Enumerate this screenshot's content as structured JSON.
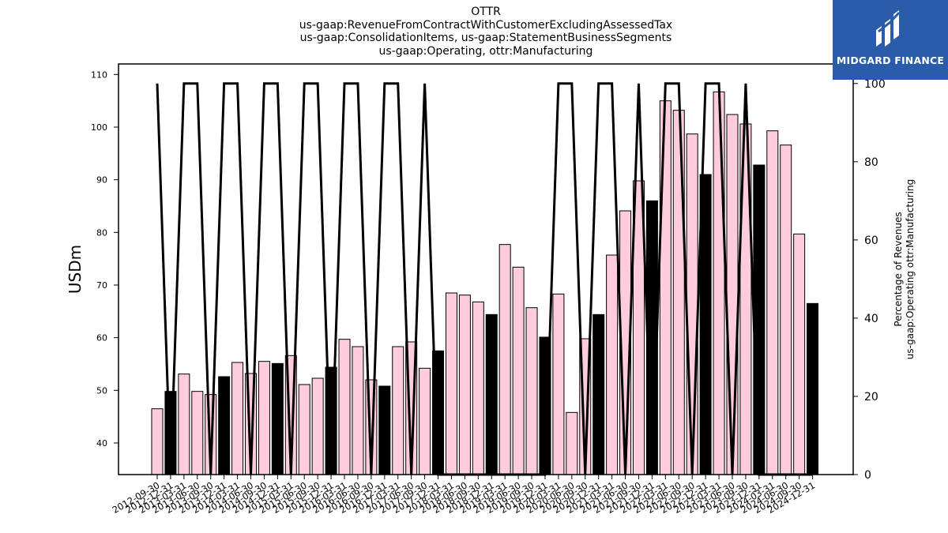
{
  "header": {
    "title_lines": [
      "OTTR",
      "us-gaap:RevenueFromContractWithCustomerExcludingAssessedTax",
      "us-gaap:ConsolidationItems, us-gaap:StatementBusinessSegments",
      "us-gaap:Operating, ottr:Manufacturing"
    ]
  },
  "logo": {
    "text": "MIDGARD FINANCE",
    "icon": "midgard-logo-icon",
    "color": "#2a5caa"
  },
  "colors": {
    "bar_default": "#ffccdd",
    "bar_q4": "#000000",
    "line": "#000000"
  },
  "chart_data": {
    "type": "bar",
    "ylabel": "USDm",
    "y2label": [
      "Percentage of Revenues",
      "us-gaap:Operating ottr:Manufacturing"
    ],
    "ylim": [
      34,
      112
    ],
    "y2lim": [
      0,
      105
    ],
    "yticks": [
      40,
      50,
      60,
      70,
      80,
      90,
      100,
      110
    ],
    "y2ticks": [
      0,
      20,
      40,
      60,
      80,
      100
    ],
    "x": [
      "2012-09-30",
      "2012-12-31",
      "2013-03-31",
      "2013-06-30",
      "2013-09-30",
      "2013-12-31",
      "2014-03-31",
      "2014-06-30",
      "2014-09-30",
      "2014-12-31",
      "2015-03-31",
      "2015-06-30",
      "2015-09-30",
      "2015-12-31",
      "2016-03-31",
      "2016-06-30",
      "2016-09-30",
      "2016-12-31",
      "2017-03-31",
      "2017-06-30",
      "2017-09-30",
      "2017-12-31",
      "2018-03-31",
      "2018-06-30",
      "2018-09-30",
      "2018-12-31",
      "2019-03-31",
      "2019-06-30",
      "2019-09-30",
      "2019-12-31",
      "2020-03-31",
      "2020-06-30",
      "2020-09-30",
      "2020-12-31",
      "2021-03-31",
      "2021-06-30",
      "2021-09-30",
      "2021-12-31",
      "2022-03-31",
      "2022-06-30",
      "2022-09-30",
      "2022-12-31",
      "2023-03-31",
      "2023-06-30",
      "2023-09-30",
      "2023-12-31",
      "2024-03-31",
      "2024-06-30",
      "2024-09-30",
      "2024-12-31"
    ],
    "series": [
      {
        "values": [
          46.5,
          49.8,
          53.1,
          49.8,
          49.2,
          52.6,
          55.3,
          53.2,
          55.5,
          55.1,
          56.6,
          51.1,
          52.3,
          54.4,
          59.7,
          58.3,
          52.0,
          50.8,
          58.3,
          59.2,
          54.2,
          57.5,
          68.5,
          68.1,
          66.8,
          64.4,
          77.7,
          73.4,
          65.7,
          60.1,
          68.3,
          45.8,
          59.8,
          64.4,
          75.7,
          84.1,
          89.8,
          86.0,
          105.0,
          103.2,
          98.7,
          91.0,
          106.7,
          102.4,
          100.6,
          92.8,
          99.3,
          96.6,
          79.7,
          66.5
        ]
      },
      {
        "type": "line",
        "axis": "y2",
        "values": [
          100,
          0,
          100,
          100,
          0,
          100,
          100,
          0,
          100,
          100,
          0,
          100,
          100,
          0,
          100,
          100,
          0,
          100,
          100,
          0,
          100,
          0,
          0,
          0,
          0,
          0,
          0,
          0,
          0,
          0,
          100,
          100,
          0,
          100,
          100,
          0,
          100,
          0,
          100,
          100,
          0,
          100,
          100,
          0,
          100,
          0,
          0,
          0,
          0,
          0
        ]
      }
    ]
  }
}
